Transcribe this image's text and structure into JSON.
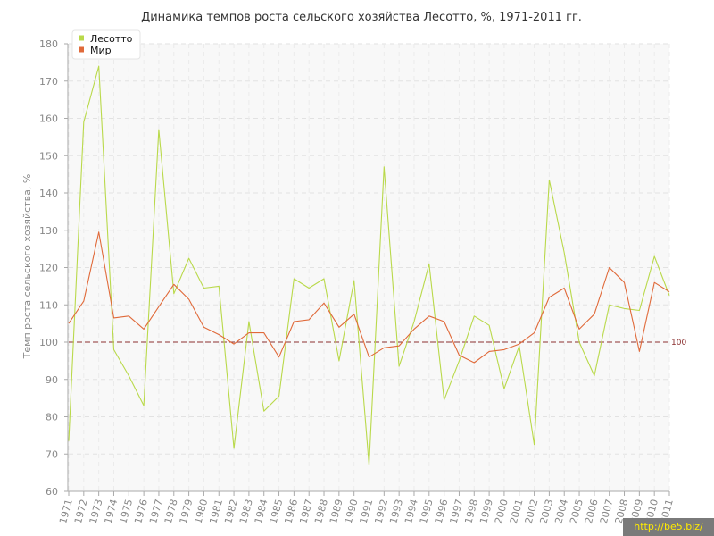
{
  "chart_data": {
    "type": "line",
    "title": "Динамика темпов роста сельского хозяйства Лесотто, %, 1971-2011 гг.",
    "ylabel": "Темп роста сельского хозяйства, %",
    "xlabel": "",
    "ylim": [
      60,
      180
    ],
    "yticks": [
      60,
      70,
      80,
      90,
      100,
      110,
      120,
      130,
      140,
      150,
      160,
      170,
      180
    ],
    "grid": true,
    "legend_position": "top-left",
    "reference_line": {
      "value": 100,
      "label": "100",
      "color": "#8b2f2f"
    },
    "x": [
      "1971",
      "1972",
      "1973",
      "1974",
      "1975",
      "1976",
      "1977",
      "1978",
      "1979",
      "1980",
      "1981",
      "1982",
      "1983",
      "1984",
      "1985",
      "1986",
      "1987",
      "1988",
      "1989",
      "1990",
      "1991",
      "1992",
      "1993",
      "1994",
      "1995",
      "1996",
      "1997",
      "1998",
      "1999",
      "2000",
      "2001",
      "2002",
      "2003",
      "2004",
      "2005",
      "2006",
      "2007",
      "2008",
      "2009",
      "2010",
      "2011"
    ],
    "series": [
      {
        "name": "Лесотто",
        "color": "#b9d94a",
        "values": [
          73.5,
          159,
          174,
          98,
          91,
          83,
          157,
          113,
          122.5,
          114.5,
          115,
          71.5,
          105.5,
          81.5,
          85.5,
          117,
          114.5,
          117,
          95,
          116.5,
          67,
          147,
          93.5,
          105.5,
          121,
          84.5,
          95,
          107,
          104.5,
          87.5,
          99,
          72.5,
          143.5,
          124,
          100,
          91,
          110,
          109,
          108.5,
          123,
          112.5
        ]
      },
      {
        "name": "Мир",
        "color": "#e06a3a",
        "values": [
          105,
          111,
          129.5,
          106.5,
          107,
          103.5,
          109.5,
          115.5,
          111.5,
          104,
          102,
          99.5,
          102.5,
          102.5,
          96,
          105.5,
          106,
          110.5,
          104,
          107.5,
          96,
          98.5,
          99,
          103.5,
          107,
          105.5,
          96.5,
          94.5,
          97.5,
          98,
          99.5,
          102.5,
          112,
          114.5,
          103.5,
          107.5,
          120,
          116,
          97.5,
          116,
          113.5
        ]
      }
    ]
  },
  "watermark": "http://be5.biz/"
}
